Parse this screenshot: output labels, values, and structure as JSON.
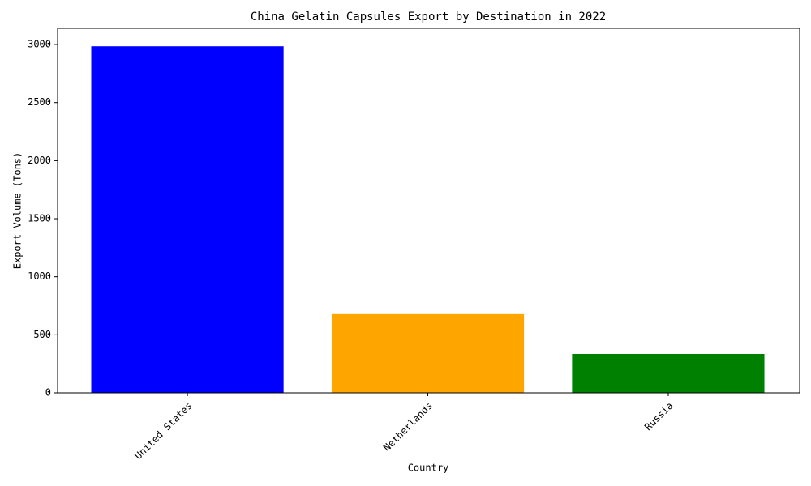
{
  "chart_data": {
    "type": "bar",
    "title": "China Gelatin Capsules Export by Destination in 2022",
    "x_label": "Country",
    "y_label": "Export Volume (Tons)",
    "categories": [
      "United States",
      "Netherlands",
      "Russia"
    ],
    "values": [
      2985,
      678,
      335
    ],
    "colors": [
      "#0000ff",
      "#ffa500",
      "#008000"
    ],
    "ylim": [
      0,
      3140
    ],
    "yticks": [
      0,
      500,
      1000,
      1500,
      2000,
      2500,
      3000
    ],
    "grid": false
  }
}
